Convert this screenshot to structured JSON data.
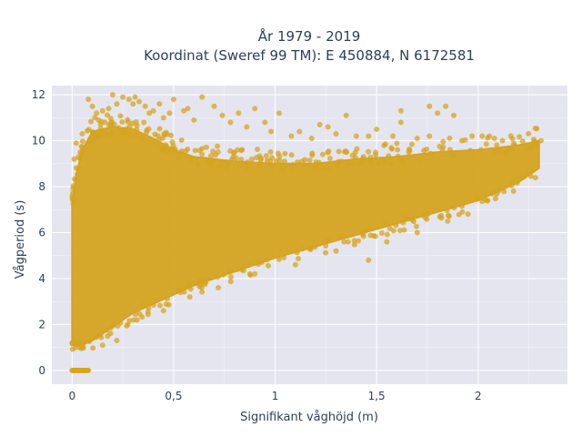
{
  "chart_data": {
    "type": "scatter",
    "title": {
      "line1": "År 1979 - 2019",
      "line2": "Koordinat (Sweref 99 TM): E 450884, N 6172581"
    },
    "xlabel": "Signifikant våghöjd (m)",
    "ylabel": "Vågperiod (s)",
    "xlim": [
      -0.1,
      2.44
    ],
    "ylim": [
      -0.6,
      12.4
    ],
    "xticks": [
      {
        "value": 0,
        "label": "0"
      },
      {
        "value": 0.5,
        "label": "0,5"
      },
      {
        "value": 1,
        "label": "1"
      },
      {
        "value": 1.5,
        "label": "1,5"
      },
      {
        "value": 2,
        "label": "2"
      }
    ],
    "yticks": [
      {
        "value": 0,
        "label": "0"
      },
      {
        "value": 2,
        "label": "2"
      },
      {
        "value": 4,
        "label": "4"
      },
      {
        "value": 6,
        "label": "6"
      },
      {
        "value": 8,
        "label": "8"
      },
      {
        "value": 10,
        "label": "10"
      },
      {
        "value": 12,
        "label": "12"
      }
    ],
    "grid": true,
    "legend": false,
    "marker_color": "#d4a421",
    "plot_background": "#e5e5f0",
    "series": [
      {
        "envelope": [
          {
            "x": 0.0,
            "ymin": 1.1,
            "ymax": 7.2
          },
          {
            "x": 0.02,
            "ymin": 1.1,
            "ymax": 8.5
          },
          {
            "x": 0.05,
            "ymin": 1.1,
            "ymax": 9.6
          },
          {
            "x": 0.1,
            "ymin": 1.3,
            "ymax": 10.4
          },
          {
            "x": 0.2,
            "ymin": 1.9,
            "ymax": 10.6
          },
          {
            "x": 0.3,
            "ymin": 2.5,
            "ymax": 10.5
          },
          {
            "x": 0.4,
            "ymin": 2.9,
            "ymax": 10.1
          },
          {
            "x": 0.5,
            "ymin": 3.3,
            "ymax": 9.6
          },
          {
            "x": 0.6,
            "ymin": 3.7,
            "ymax": 9.3
          },
          {
            "x": 0.8,
            "ymin": 4.3,
            "ymax": 9.1
          },
          {
            "x": 1.0,
            "ymin": 4.9,
            "ymax": 9.0
          },
          {
            "x": 1.2,
            "ymin": 5.4,
            "ymax": 9.0
          },
          {
            "x": 1.4,
            "ymin": 5.9,
            "ymax": 9.2
          },
          {
            "x": 1.6,
            "ymin": 6.4,
            "ymax": 9.3
          },
          {
            "x": 1.8,
            "ymin": 6.9,
            "ymax": 9.5
          },
          {
            "x": 2.0,
            "ymin": 7.4,
            "ymax": 9.6
          },
          {
            "x": 2.2,
            "ymin": 8.2,
            "ymax": 9.8
          },
          {
            "x": 2.3,
            "ymin": 8.8,
            "ymax": 10.0
          }
        ],
        "zero_period": {
          "xmin": 0.0,
          "xmax": 0.08,
          "y": 0
        },
        "points": [
          [
            0.22,
            11.6
          ],
          [
            0.25,
            11.9
          ],
          [
            0.28,
            11.8
          ],
          [
            0.31,
            11.9
          ],
          [
            0.33,
            11.7
          ],
          [
            0.36,
            11.5
          ],
          [
            0.3,
            11.6
          ],
          [
            0.2,
            12.0
          ],
          [
            0.08,
            11.8
          ],
          [
            0.1,
            11.5
          ],
          [
            0.12,
            11.2
          ],
          [
            0.15,
            11.3
          ],
          [
            0.18,
            11.4
          ],
          [
            0.38,
            11.2
          ],
          [
            0.4,
            11.3
          ],
          [
            0.45,
            11.0
          ],
          [
            0.48,
            11.2
          ],
          [
            0.55,
            11.3
          ],
          [
            0.6,
            10.9
          ],
          [
            0.64,
            11.9
          ],
          [
            0.7,
            11.5
          ],
          [
            0.74,
            11.1
          ],
          [
            0.78,
            10.8
          ],
          [
            0.82,
            11.2
          ],
          [
            0.86,
            10.6
          ],
          [
            0.9,
            11.4
          ],
          [
            0.95,
            10.8
          ],
          [
            0.98,
            10.4
          ],
          [
            1.02,
            11.2
          ],
          [
            1.08,
            10.2
          ],
          [
            1.12,
            10.4
          ],
          [
            1.18,
            10.1
          ],
          [
            1.22,
            10.7
          ],
          [
            1.26,
            10.6
          ],
          [
            1.3,
            10.3
          ],
          [
            1.35,
            11.1
          ],
          [
            1.4,
            10.2
          ],
          [
            1.46,
            10.2
          ],
          [
            1.5,
            10.5
          ],
          [
            1.58,
            10.2
          ],
          [
            1.62,
            10.8
          ],
          [
            1.7,
            10.1
          ],
          [
            1.76,
            10.2
          ],
          [
            1.8,
            11.2
          ],
          [
            1.84,
            11.5
          ],
          [
            1.88,
            11.1
          ],
          [
            1.92,
            10.0
          ],
          [
            1.97,
            10.2
          ],
          [
            2.02,
            10.2
          ],
          [
            2.08,
            10.1
          ],
          [
            2.12,
            10.0
          ],
          [
            2.18,
            9.8
          ],
          [
            2.24,
            9.6
          ],
          [
            2.28,
            9.9
          ],
          [
            2.31,
            10.0
          ],
          [
            1.76,
            11.5
          ],
          [
            1.62,
            11.3
          ],
          [
            0.43,
            11.6
          ],
          [
            0.5,
            11.8
          ],
          [
            0.57,
            11.4
          ],
          [
            0.13,
            10.9
          ],
          [
            0.05,
            10.3
          ],
          [
            0.02,
            9.9
          ],
          [
            0.01,
            9.2
          ],
          [
            0.03,
            8.8
          ],
          [
            0.15,
            1.1
          ],
          [
            0.22,
            1.3
          ],
          [
            0.32,
            2.2
          ],
          [
            0.45,
            2.6
          ],
          [
            0.58,
            3.2
          ],
          [
            0.72,
            3.6
          ],
          [
            0.9,
            4.2
          ],
          [
            1.1,
            4.6
          ],
          [
            1.3,
            5.2
          ],
          [
            1.46,
            4.8
          ],
          [
            1.55,
            5.6
          ],
          [
            1.7,
            6.0
          ],
          [
            1.85,
            6.5
          ],
          [
            1.95,
            6.8
          ],
          [
            2.1,
            7.8
          ]
        ]
      }
    ]
  }
}
